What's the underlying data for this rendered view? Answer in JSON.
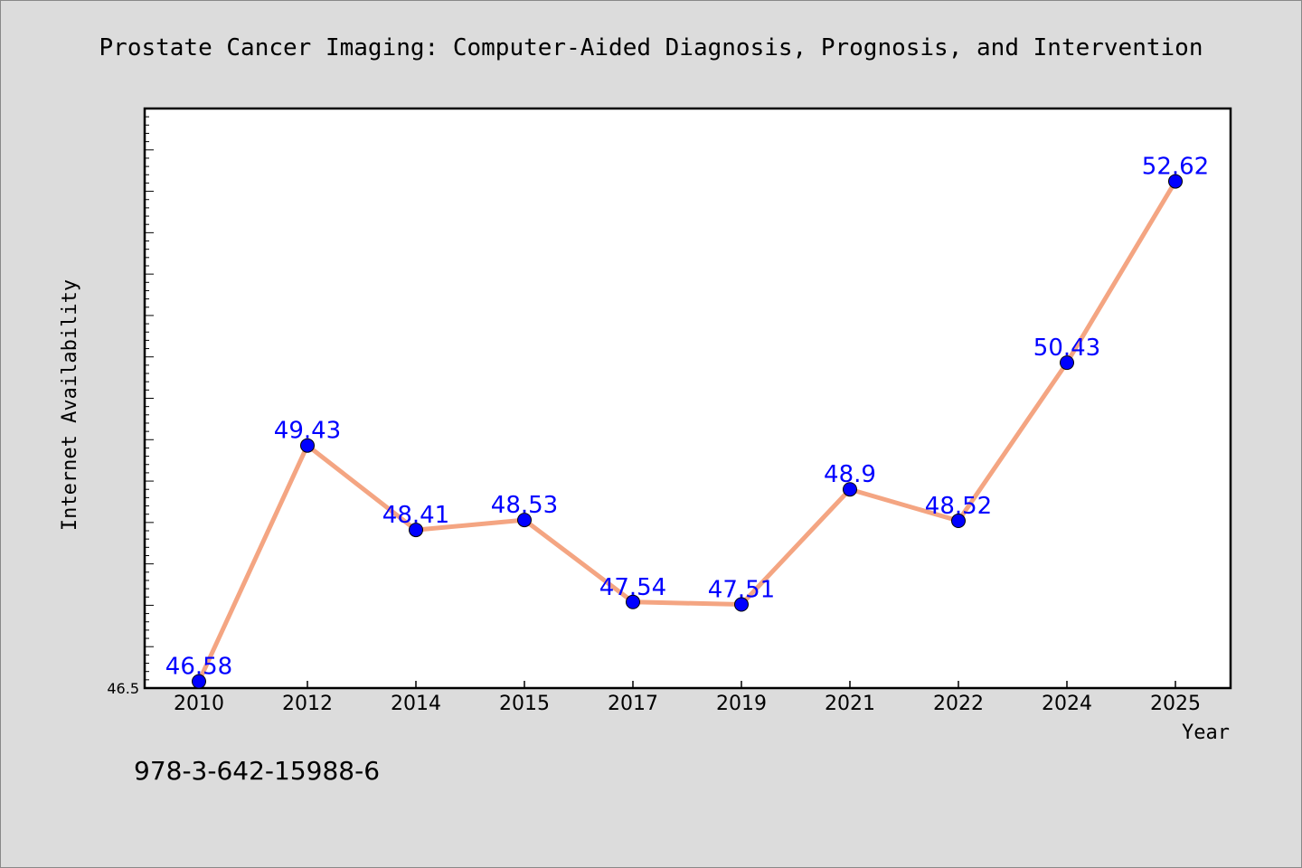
{
  "chart_data": {
    "type": "line",
    "title": "Prostate Cancer Imaging: Computer-Aided Diagnosis, Prognosis, and Intervention",
    "xlabel": "Year",
    "ylabel": "Internet Availability",
    "categories": [
      "2010",
      "2012",
      "2014",
      "2015",
      "2017",
      "2019",
      "2021",
      "2022",
      "2024",
      "2025"
    ],
    "series": [
      {
        "values": [
          46.58,
          49.43,
          48.41,
          48.53,
          47.54,
          47.51,
          48.9,
          48.52,
          50.43,
          52.62
        ],
        "data_labels": [
          "46.58",
          "49.43",
          "48.41",
          "48.53",
          "47.54",
          "47.51",
          "48.9",
          "48.52",
          "50.43",
          "52.62"
        ]
      }
    ],
    "y_tick_labels": [
      "46.5"
    ],
    "ylim": [
      46.5,
      53.5
    ],
    "grid": false,
    "colors": {
      "line": "#f4a582",
      "marker": "#0000ff",
      "labels": "#0000ff"
    }
  },
  "footer_text": "978-3-642-15988-6"
}
